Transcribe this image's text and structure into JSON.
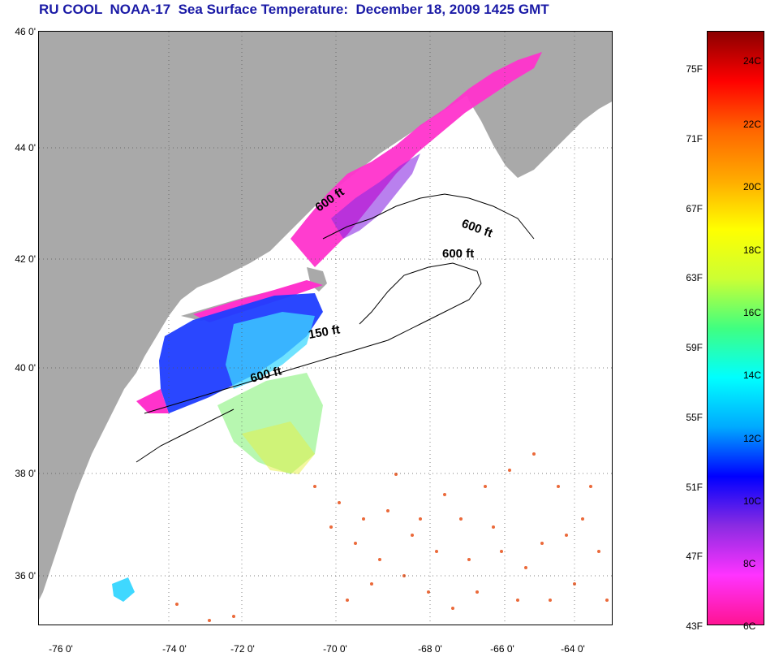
{
  "title": "RU COOL  NOAA-17  Sea Surface Temperature:  December 18, 2009 1425 GMT",
  "lat_labels": [
    "46 0'",
    "44 0'",
    "42 0'",
    "40 0'",
    "38 0'",
    "36 0'"
  ],
  "lon_labels": [
    "-76 0'",
    "-74 0'",
    "-72 0'",
    "-70 0'",
    "-68 0'",
    "-66 0'",
    "-64 0'"
  ],
  "isobath_labels": [
    "600 ft",
    "600 ft",
    "600 ft",
    "150 ft",
    "600 ft"
  ],
  "colorbar": {
    "fahrenheit_labels": [
      "75F",
      "71F",
      "67F",
      "63F",
      "59F",
      "55F",
      "51F",
      "47F",
      "43F"
    ],
    "celsius_labels": [
      "24C",
      "22C",
      "20C",
      "18C",
      "16C",
      "14C",
      "12C",
      "10C",
      "8C",
      "6C"
    ],
    "colors": [
      "#ff1493",
      "#ff33ff",
      "#8a2be2",
      "#0000ff",
      "#00aaff",
      "#00ffff",
      "#40ff80",
      "#ccff33",
      "#ffff00",
      "#ffaa00",
      "#ff6600",
      "#ff0000",
      "#8b0000"
    ]
  },
  "colors": {
    "land": "#a9a9a9",
    "title": "#1a1aa6",
    "cold": "#ff33cc",
    "cool_blue": "#1f3dff",
    "mid_cyan": "#3fd8ff",
    "warm_yellow": "#e8f040",
    "hot_orange": "#e85018"
  }
}
